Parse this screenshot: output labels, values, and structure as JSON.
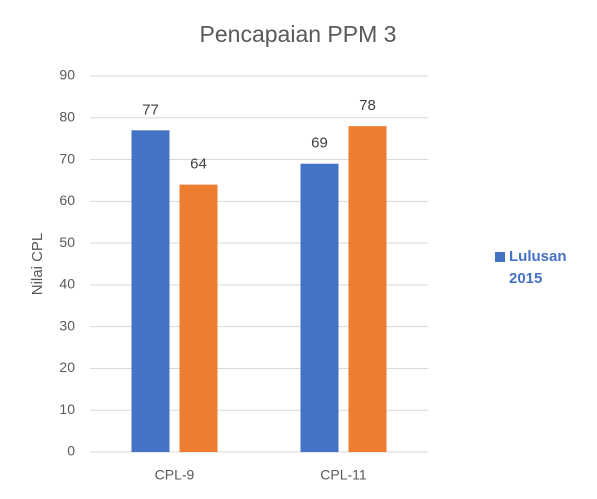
{
  "chart_data": {
    "type": "bar",
    "title": "Pencapaian PPM 3",
    "y_label": "Nilai CPL",
    "categories": [
      "CPL-9",
      "CPL-11"
    ],
    "series": [
      {
        "name": "Lulusan 2015",
        "color": "#4472c4",
        "values": [
          77,
          69
        ]
      },
      {
        "color": "#ed7d31",
        "values": [
          64,
          78
        ]
      }
    ],
    "ylim": [
      0,
      90
    ],
    "yticks": [
      0,
      10,
      20,
      30,
      40,
      50,
      60,
      70,
      80,
      90
    ],
    "grid": true,
    "legend": "right"
  }
}
